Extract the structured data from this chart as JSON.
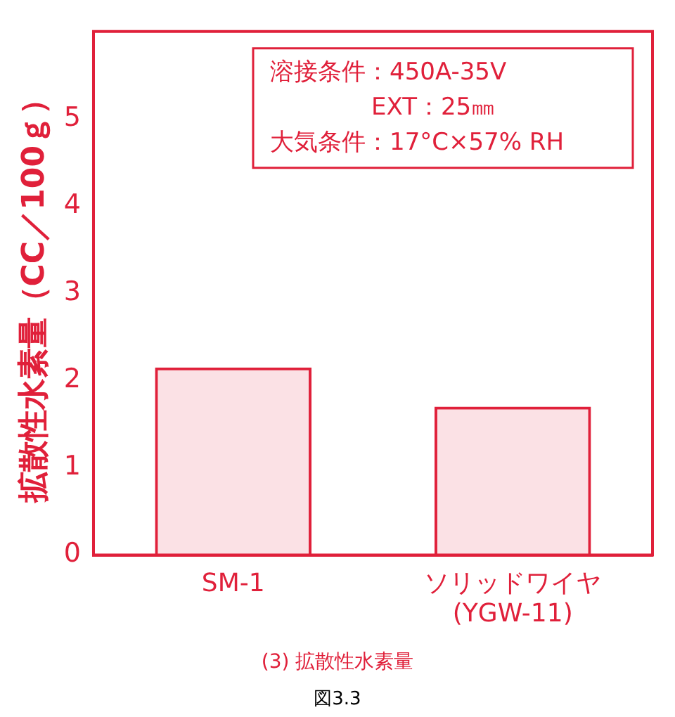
{
  "chart_data": {
    "type": "bar",
    "ylabel": "拡散性水素量（CC／100ｇ）",
    "title": "(3) 拡散性水素量",
    "categories": [
      "SM-1",
      "ソリッドワイヤ (YGW-11)"
    ],
    "values": [
      2.15,
      1.7
    ],
    "color": "#e0203a",
    "ylim": [
      0,
      6
    ],
    "yticks": [
      0,
      1,
      2,
      3,
      4,
      5
    ],
    "grid": false,
    "legend": false,
    "annotations": [
      "溶接条件：450A-35V",
      "EXT：25㎜",
      "大気条件：17°C×57% RH",
      "図3.3"
    ]
  }
}
